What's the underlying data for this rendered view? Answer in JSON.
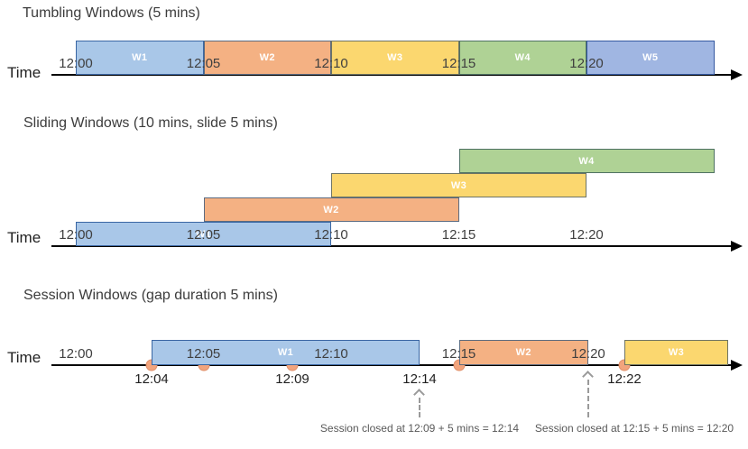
{
  "palette": {
    "blue": {
      "fill": "#A9C7E8",
      "border": "#3A66A3"
    },
    "orange": {
      "fill": "#F4B183",
      "border": "#5B6B80"
    },
    "yellow": {
      "fill": "#FBD76F",
      "border": "#6E7464"
    },
    "green": {
      "fill": "#AFD295",
      "border": "#4F7263"
    },
    "periwinkle": {
      "fill": "#A0B6E2",
      "border": "#3458A0"
    },
    "axis": "#000000",
    "event_dot": {
      "fill": "#F2A47D",
      "border": "#E0906A"
    },
    "dashed_arrow": "#9A9A9A",
    "text_dark": "#3F3F3F",
    "text_gray": "#595959"
  },
  "sections": [
    {
      "id": "tumbling",
      "title": "Tumbling Windows (5 mins)",
      "time_label": "Time",
      "ticks": [
        "12:00",
        "12:05",
        "12:10",
        "12:15",
        "12:20"
      ],
      "windows": [
        {
          "label": "W1",
          "color": "blue",
          "start": "12:00",
          "end": "12:05"
        },
        {
          "label": "W2",
          "color": "orange",
          "start": "12:05",
          "end": "12:10"
        },
        {
          "label": "W3",
          "color": "yellow",
          "start": "12:10",
          "end": "12:15"
        },
        {
          "label": "W4",
          "color": "green",
          "start": "12:15",
          "end": "12:20"
        },
        {
          "label": "W5",
          "color": "periwinkle",
          "start": "12:20",
          "end": "12:25"
        }
      ]
    },
    {
      "id": "sliding",
      "title": "Sliding Windows (10 mins, slide 5 mins)",
      "time_label": "Time",
      "ticks": [
        "12:00",
        "12:05",
        "12:10",
        "12:15",
        "12:20"
      ],
      "windows": [
        {
          "label": "W1",
          "color": "blue",
          "start": "12:00",
          "end": "12:10"
        },
        {
          "label": "W2",
          "color": "orange",
          "start": "12:05",
          "end": "12:15"
        },
        {
          "label": "W3",
          "color": "yellow",
          "start": "12:10",
          "end": "12:20"
        },
        {
          "label": "W4",
          "color": "green",
          "start": "12:15",
          "end": "12:25"
        }
      ]
    },
    {
      "id": "session",
      "title": "Session Windows (gap duration 5 mins)",
      "time_label": "Time",
      "ticks": [
        "12:00",
        "12:05",
        "12:10",
        "12:15",
        "12:20"
      ],
      "windows": [
        {
          "label": "W1",
          "color": "blue",
          "start": "12:04",
          "end": "12:14"
        },
        {
          "label": "W2",
          "color": "orange",
          "start": "12:15",
          "end": "12:20"
        },
        {
          "label": "W3",
          "color": "yellow",
          "start": "12:22",
          "end": null
        }
      ],
      "events": [
        "12:04",
        "12:05",
        "12:09",
        "12:15",
        "12:22"
      ],
      "below_labels": [
        "12:04",
        "12:09",
        "12:14",
        "12:22"
      ],
      "annotations": [
        {
          "text": "Session closed at 12:09 + 5 mins = 12:14",
          "arrow_at": "12:14"
        },
        {
          "text": "Session closed at 12:15 + 5 mins = 12:20",
          "arrow_at": "12:20"
        }
      ]
    }
  ]
}
